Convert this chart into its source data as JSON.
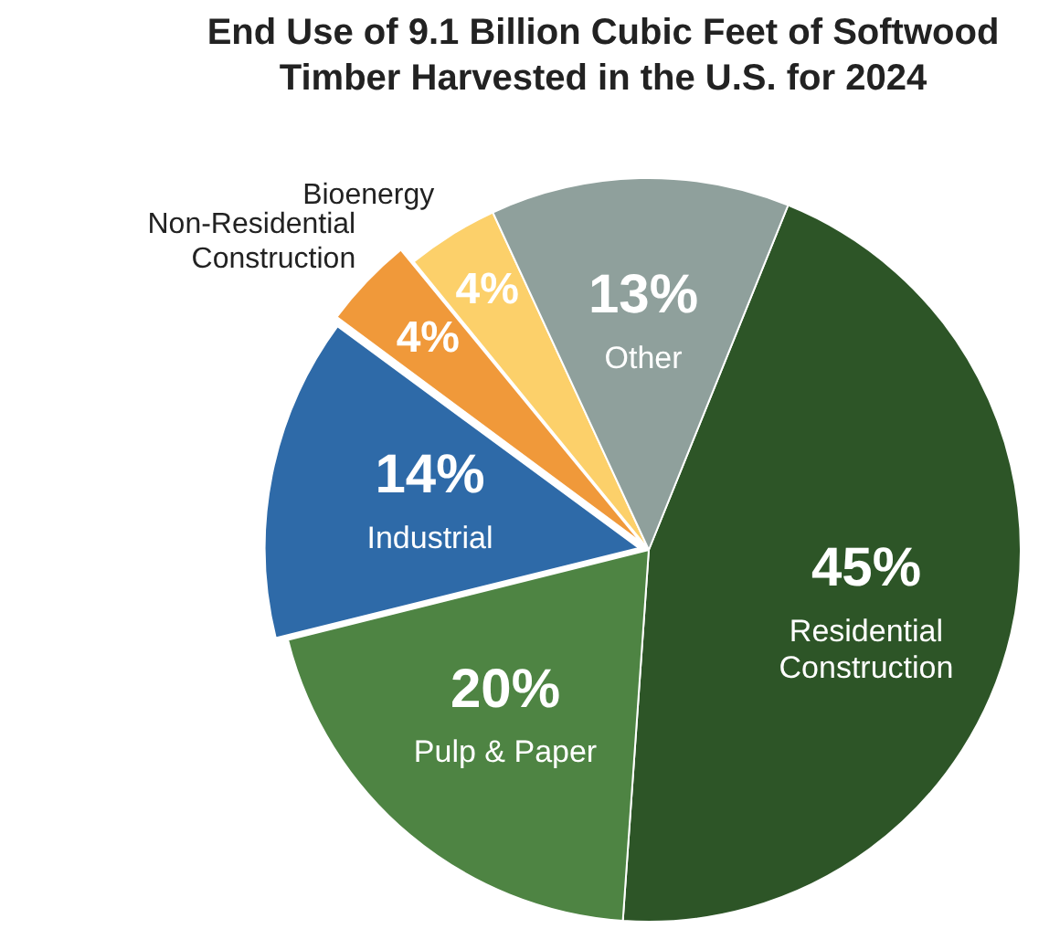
{
  "chart_data": {
    "type": "pie",
    "title": "End Use of 9.1 Billion Cubic Feet of Softwood Timber Harvested in the U.S. for 2024",
    "categories": [
      "Residential Construction",
      "Pulp & Paper",
      "Industrial",
      "Non-Residential Construction",
      "Bioenergy",
      "Other"
    ],
    "values": [
      45,
      20,
      14,
      4,
      4,
      13
    ],
    "value_labels": [
      "45%",
      "20%",
      "14%",
      "4%",
      "4%",
      "13%"
    ],
    "colors": [
      "#2d5527",
      "#4e8443",
      "#2e6aa8",
      "#f0993a",
      "#fcd06a",
      "#8fa09c"
    ],
    "legend": false
  }
}
